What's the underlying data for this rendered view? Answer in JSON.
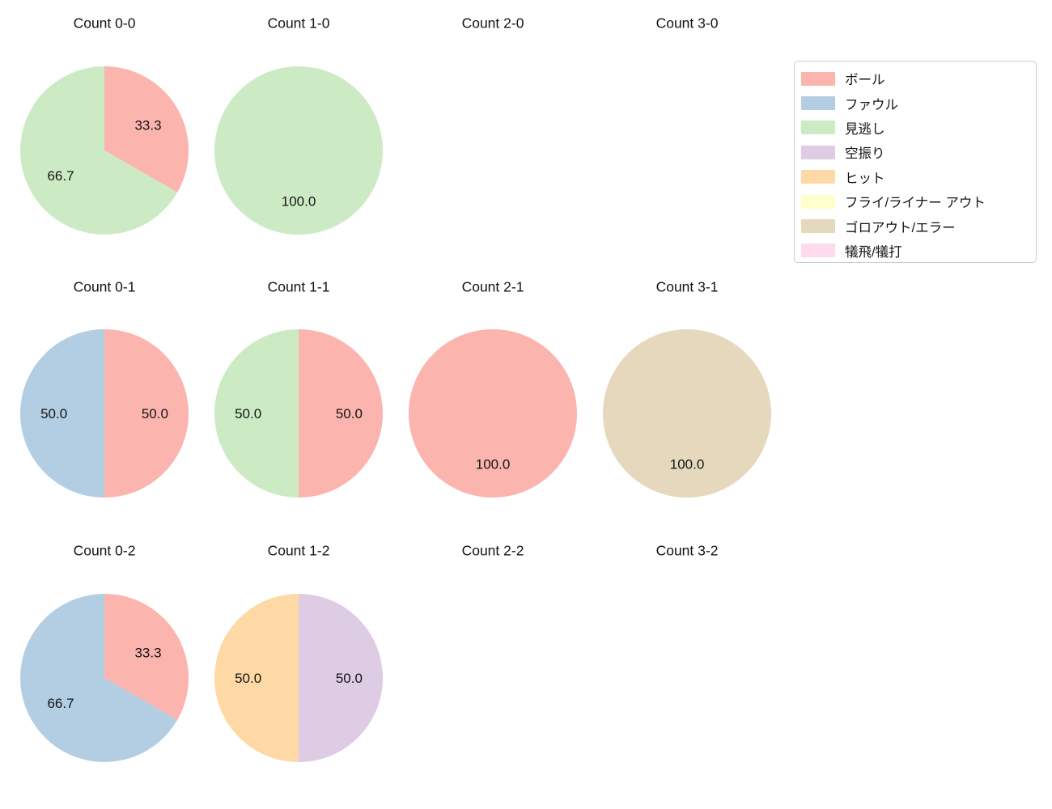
{
  "page": {
    "background_color": "#ffffff",
    "text_color": "#141414"
  },
  "legend": {
    "position": "top-right",
    "border_color": "#cccccc",
    "entries": [
      {
        "label": "ボール",
        "color": "#fbb4ae"
      },
      {
        "label": "ファウル",
        "color": "#b3cde3"
      },
      {
        "label": "見逃し",
        "color": "#ccebc5"
      },
      {
        "label": "空振り",
        "color": "#decbe4"
      },
      {
        "label": "ヒット",
        "color": "#fed9a6"
      },
      {
        "label": "フライ/ライナー アウト",
        "color": "#ffffcc"
      },
      {
        "label": "ゴロアウト/エラー",
        "color": "#e5d8bd"
      },
      {
        "label": "犠飛/犠打",
        "color": "#fddaec"
      }
    ]
  },
  "chart_data": [
    {
      "type": "pie",
      "title": "Count 0-0",
      "start_angle": 90,
      "direction": "clockwise",
      "pct_distance": 0.6,
      "slices": [
        {
          "label": "ボール",
          "value": 33.3,
          "text": "33.3",
          "color": "#fbb4ae"
        },
        {
          "label": "見逃し",
          "value": 66.7,
          "text": "66.7",
          "color": "#ccebc5"
        }
      ]
    },
    {
      "type": "pie",
      "title": "Count 1-0",
      "start_angle": 90,
      "direction": "clockwise",
      "pct_distance": 0.6,
      "slices": [
        {
          "label": "見逃し",
          "value": 100.0,
          "text": "100.0",
          "color": "#ccebc5"
        }
      ]
    },
    {
      "type": "pie",
      "title": "Count 2-0",
      "start_angle": 90,
      "direction": "clockwise",
      "pct_distance": 0.6,
      "slices": []
    },
    {
      "type": "pie",
      "title": "Count 3-0",
      "start_angle": 90,
      "direction": "clockwise",
      "pct_distance": 0.6,
      "slices": []
    },
    {
      "type": "pie",
      "title": "Count 0-1",
      "start_angle": 90,
      "direction": "clockwise",
      "pct_distance": 0.6,
      "slices": [
        {
          "label": "ボール",
          "value": 50.0,
          "text": "50.0",
          "color": "#fbb4ae"
        },
        {
          "label": "ファウル",
          "value": 50.0,
          "text": "50.0",
          "color": "#b3cde3"
        }
      ]
    },
    {
      "type": "pie",
      "title": "Count 1-1",
      "start_angle": 90,
      "direction": "clockwise",
      "pct_distance": 0.6,
      "slices": [
        {
          "label": "ボール",
          "value": 50.0,
          "text": "50.0",
          "color": "#fbb4ae"
        },
        {
          "label": "見逃し",
          "value": 50.0,
          "text": "50.0",
          "color": "#ccebc5"
        }
      ]
    },
    {
      "type": "pie",
      "title": "Count 2-1",
      "start_angle": 90,
      "direction": "clockwise",
      "pct_distance": 0.6,
      "slices": [
        {
          "label": "ボール",
          "value": 100.0,
          "text": "100.0",
          "color": "#fbb4ae"
        }
      ]
    },
    {
      "type": "pie",
      "title": "Count 3-1",
      "start_angle": 90,
      "direction": "clockwise",
      "pct_distance": 0.6,
      "slices": [
        {
          "label": "ゴロアウト/エラー",
          "value": 100.0,
          "text": "100.0",
          "color": "#e5d8bd"
        }
      ]
    },
    {
      "type": "pie",
      "title": "Count 0-2",
      "start_angle": 90,
      "direction": "clockwise",
      "pct_distance": 0.6,
      "slices": [
        {
          "label": "ボール",
          "value": 33.3,
          "text": "33.3",
          "color": "#fbb4ae"
        },
        {
          "label": "ファウル",
          "value": 66.7,
          "text": "66.7",
          "color": "#b3cde3"
        }
      ]
    },
    {
      "type": "pie",
      "title": "Count 1-2",
      "start_angle": 90,
      "direction": "clockwise",
      "pct_distance": 0.6,
      "slices": [
        {
          "label": "空振り",
          "value": 50.0,
          "text": "50.0",
          "color": "#decbe4"
        },
        {
          "label": "ヒット",
          "value": 50.0,
          "text": "50.0",
          "color": "#fed9a6"
        }
      ]
    },
    {
      "type": "pie",
      "title": "Count 2-2",
      "start_angle": 90,
      "direction": "clockwise",
      "pct_distance": 0.6,
      "slices": []
    },
    {
      "type": "pie",
      "title": "Count 3-2",
      "start_angle": 90,
      "direction": "clockwise",
      "pct_distance": 0.6,
      "slices": []
    }
  ]
}
